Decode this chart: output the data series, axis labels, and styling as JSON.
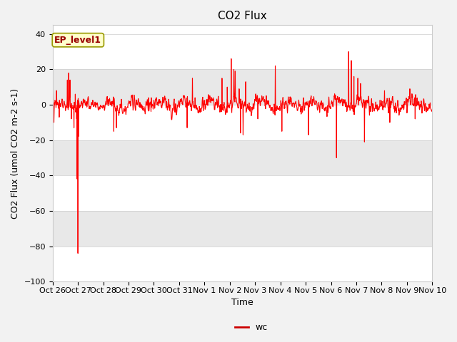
{
  "title": "CO2 Flux",
  "xlabel": "Time",
  "ylabel": "CO2 Flux (umol CO2 m-2 s-1)",
  "ylim": [
    -100,
    45
  ],
  "yticks": [
    -100,
    -80,
    -60,
    -40,
    -20,
    0,
    20,
    40
  ],
  "line_color": "#FF0000",
  "line_width": 0.8,
  "legend_label": "wc",
  "legend_line_color": "#CC0000",
  "box_label": "EP_level1",
  "box_facecolor": "#FFFFCC",
  "box_edgecolor": "#999900",
  "fig_facecolor": "#F2F2F2",
  "plot_bg_color": "#FFFFFF",
  "band_color": "#E8E8E8",
  "title_fontsize": 11,
  "axis_fontsize": 9,
  "tick_fontsize": 8,
  "x_tick_labels": [
    "Oct 26",
    "Oct 27",
    "Oct 28",
    "Oct 29",
    "Oct 30",
    "Oct 31",
    "Nov 1",
    "Nov 2",
    "Nov 3",
    "Nov 4",
    "Nov 5",
    "Nov 6",
    "Nov 7",
    "Nov 8",
    "Nov 9",
    "Nov 10"
  ]
}
